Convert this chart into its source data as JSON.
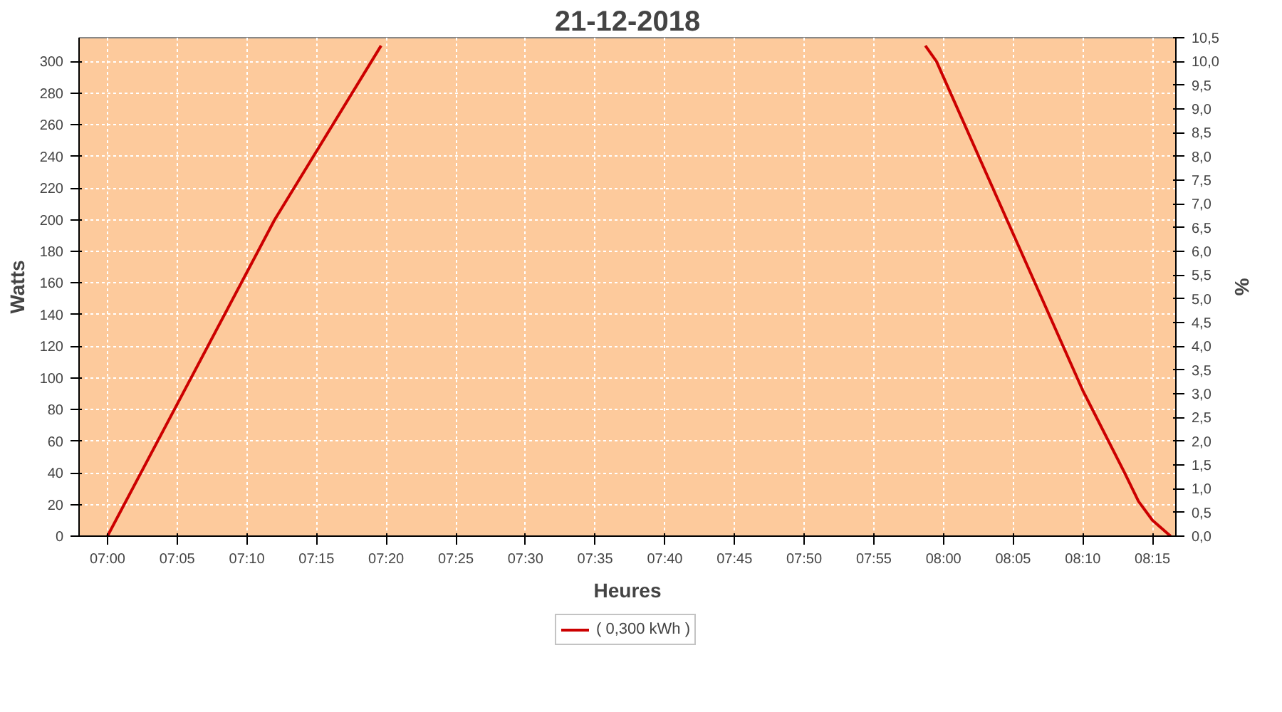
{
  "chart_data": {
    "type": "line",
    "title": "21-12-2018",
    "xlabel": "Heures",
    "ylabel": "Watts",
    "y2label": "%",
    "x": [
      7.0,
      7.2,
      7.3273,
      null,
      7.9783,
      7.9917,
      8.1667,
      8.2167,
      8.2333,
      8.25,
      8.2717
    ],
    "series": [
      {
        "name": "( 0,300 kWh )",
        "color": "#cc0000",
        "values": [
          0,
          200,
          310,
          null,
          310,
          300,
          92,
          40,
          22,
          10,
          0
        ]
      }
    ],
    "xlim": [
      6.966,
      8.278
    ],
    "ylim": [
      0,
      315
    ],
    "y2lim": [
      0,
      10.5
    ],
    "xticks": [
      {
        "value": 7.0,
        "label": "07:00"
      },
      {
        "value": 7.0833,
        "label": "07:05"
      },
      {
        "value": 7.1667,
        "label": "07:10"
      },
      {
        "value": 7.25,
        "label": "07:15"
      },
      {
        "value": 7.3333,
        "label": "07:20"
      },
      {
        "value": 7.4167,
        "label": "07:25"
      },
      {
        "value": 7.5,
        "label": "07:30"
      },
      {
        "value": 7.5833,
        "label": "07:35"
      },
      {
        "value": 7.6667,
        "label": "07:40"
      },
      {
        "value": 7.75,
        "label": "07:45"
      },
      {
        "value": 7.8333,
        "label": "07:50"
      },
      {
        "value": 7.9167,
        "label": "07:55"
      },
      {
        "value": 8.0,
        "label": "08:00"
      },
      {
        "value": 8.0833,
        "label": "08:05"
      },
      {
        "value": 8.1667,
        "label": "08:10"
      },
      {
        "value": 8.25,
        "label": "08:15"
      }
    ],
    "yticks": [
      0,
      20,
      40,
      60,
      80,
      100,
      120,
      140,
      160,
      180,
      200,
      220,
      240,
      260,
      280,
      300
    ],
    "y2ticks": [
      {
        "value": 0,
        "label": "0,0"
      },
      {
        "value": 0.5,
        "label": "0,5"
      },
      {
        "value": 1,
        "label": "1,0"
      },
      {
        "value": 1.5,
        "label": "1,5"
      },
      {
        "value": 2,
        "label": "2,0"
      },
      {
        "value": 2.5,
        "label": "2,5"
      },
      {
        "value": 3,
        "label": "3,0"
      },
      {
        "value": 3.5,
        "label": "3,5"
      },
      {
        "value": 4,
        "label": "4,0"
      },
      {
        "value": 4.5,
        "label": "4,5"
      },
      {
        "value": 5,
        "label": "5,0"
      },
      {
        "value": 5.5,
        "label": "5,5"
      },
      {
        "value": 6,
        "label": "6,0"
      },
      {
        "value": 6.5,
        "label": "6,5"
      },
      {
        "value": 7,
        "label": "7,0"
      },
      {
        "value": 7.5,
        "label": "7,5"
      },
      {
        "value": 8,
        "label": "8,0"
      },
      {
        "value": 8.5,
        "label": "8,5"
      },
      {
        "value": 9,
        "label": "9,0"
      },
      {
        "value": 9.5,
        "label": "9,5"
      },
      {
        "value": 10,
        "label": "10,0"
      },
      {
        "value": 10.5,
        "label": "10,5"
      }
    ],
    "grid": true,
    "legend": "bottom",
    "marker": "none",
    "line_style": "solid"
  }
}
